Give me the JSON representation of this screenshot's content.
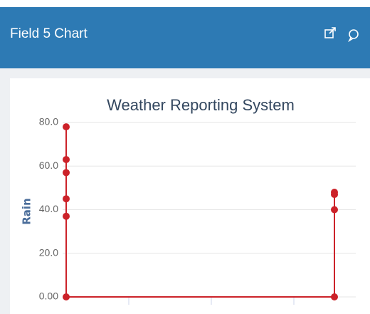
{
  "header": {
    "title": "Field 5 Chart"
  },
  "chart_data": {
    "type": "line",
    "title": "Weather Reporting System",
    "y_label": "Rain",
    "x": [
      0,
      0,
      0,
      0,
      0,
      0,
      100,
      100,
      100,
      100
    ],
    "values": [
      78,
      63,
      57,
      45,
      37,
      0,
      0,
      40,
      47,
      48
    ],
    "color": "#cc2229",
    "xlim": [
      0,
      100
    ],
    "ylim": [
      0,
      80
    ],
    "yticks": [
      {
        "value": 0,
        "label": "0.00"
      },
      {
        "value": 20,
        "label": "20.0"
      },
      {
        "value": 40,
        "label": "40.0"
      },
      {
        "value": 60,
        "label": "60.0"
      },
      {
        "value": 80,
        "label": "80.0"
      }
    ],
    "grid": true
  }
}
